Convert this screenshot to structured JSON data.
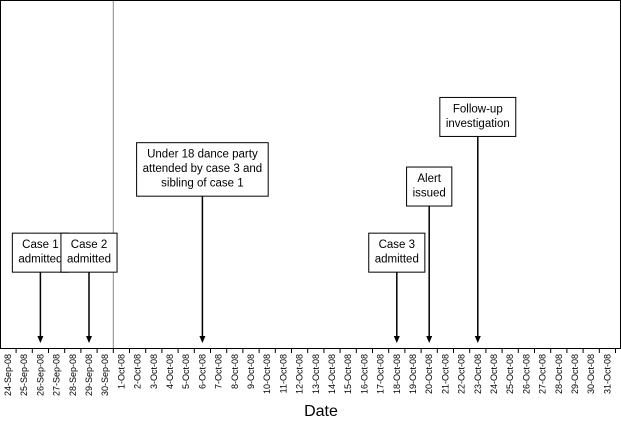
{
  "chart_data": {
    "type": "timeline",
    "xlabel": "Date",
    "dates": [
      "24-Sep-08",
      "25-Sep-08",
      "26-Sep-08",
      "27-Sep-08",
      "28-Sep-08",
      "29-Sep-08",
      "30-Sep-08",
      "1-Oct-08",
      "2-Oct-08",
      "3-Oct-08",
      "4-Oct-08",
      "5-Oct-08",
      "6-Oct-08",
      "7-Oct-08",
      "8-Oct-08",
      "9-Oct-08",
      "10-Oct-08",
      "11-Oct-08",
      "12-Oct-08",
      "13-Oct-08",
      "14-Oct-08",
      "15-Oct-08",
      "16-Oct-08",
      "17-Oct-08",
      "18-Oct-08",
      "19-Oct-08",
      "20-Oct-08",
      "21-Oct-08",
      "22-Oct-08",
      "23-Oct-08",
      "24-Oct-08",
      "25-Oct-08",
      "26-Oct-08",
      "27-Oct-08",
      "28-Oct-08",
      "29-Oct-08",
      "30-Oct-08",
      "31-Oct-08"
    ],
    "reference_line_date": "30-Sep-08",
    "events": [
      {
        "date": "26-Sep-08",
        "lines": [
          "Case 1",
          "admitted"
        ],
        "level": 0.33
      },
      {
        "date": "29-Sep-08",
        "lines": [
          "Case 2",
          "admitted"
        ],
        "level": 0.33
      },
      {
        "date": "6-Oct-08",
        "lines": [
          "Under 18 dance party",
          "attended by case 3 and",
          "sibling of case 1"
        ],
        "level": 0.59
      },
      {
        "date": "18-Oct-08",
        "lines": [
          "Case 3",
          "admitted"
        ],
        "level": 0.33
      },
      {
        "date": "20-Oct-08",
        "lines": [
          "Alert",
          "issued"
        ],
        "level": 0.52
      },
      {
        "date": "23-Oct-08",
        "lines": [
          "Follow-up",
          "investigation"
        ],
        "level": 0.72
      }
    ]
  }
}
